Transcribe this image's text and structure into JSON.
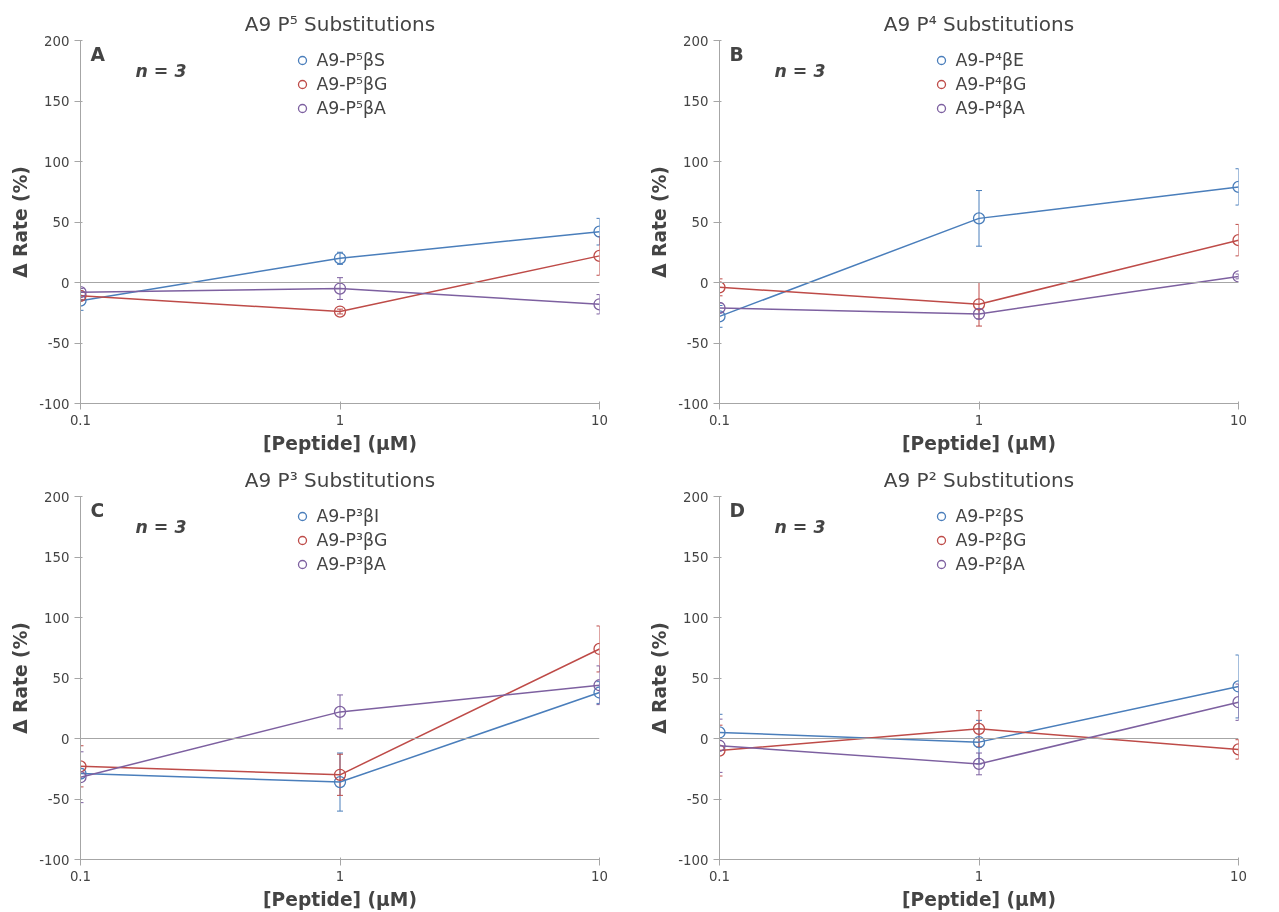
{
  "chart_data": [
    {
      "type": "line",
      "title": "A9 P⁵ Substitutions",
      "xlabel": "[Peptide] (μM)",
      "ylabel": "Δ Rate (%)",
      "annotations": [
        "A",
        "n = 3"
      ],
      "x": [
        0.1,
        1,
        10
      ],
      "log": "x",
      "xlim": [
        0.1,
        10
      ],
      "xticks": [
        0.1,
        1,
        10
      ],
      "ylim": [
        -100,
        200
      ],
      "yticks": [
        -100,
        -50,
        0,
        50,
        100,
        150,
        200
      ],
      "grid": false,
      "legend": "top",
      "marker": "circle",
      "line_style": "solid",
      "ref_lines": [
        {
          "axis": "y",
          "value": 0,
          "color": "#a6a6a6"
        }
      ],
      "series": [
        {
          "name": "A9-P⁵βS",
          "color": "#4a7ebb",
          "values": [
            -15,
            20,
            42
          ],
          "errors": [
            8,
            5,
            11
          ]
        },
        {
          "name": "A9-P⁵βG",
          "color": "#be4b48",
          "values": [
            -11,
            -24,
            22
          ],
          "errors": [
            3,
            2,
            16
          ]
        },
        {
          "name": "A9-P⁵βA",
          "color": "#7d60a0",
          "values": [
            -8,
            -5,
            -18
          ],
          "errors": [
            3,
            9,
            8
          ]
        }
      ]
    },
    {
      "type": "line",
      "title": "A9 P⁴ Substitutions",
      "xlabel": "[Peptide] (μM)",
      "ylabel": "Δ Rate (%)",
      "annotations": [
        "B",
        "n = 3"
      ],
      "x": [
        0.1,
        1,
        10
      ],
      "log": "x",
      "xlim": [
        0.1,
        10
      ],
      "xticks": [
        0.1,
        1,
        10
      ],
      "ylim": [
        -100,
        200
      ],
      "yticks": [
        -100,
        -50,
        0,
        50,
        100,
        150,
        200
      ],
      "grid": false,
      "legend": "top",
      "marker": "circle",
      "line_style": "solid",
      "ref_lines": [
        {
          "axis": "y",
          "value": 0,
          "color": "#a6a6a6"
        }
      ],
      "series": [
        {
          "name": "A9-P⁴βE",
          "color": "#4a7ebb",
          "values": [
            -28,
            53,
            79
          ],
          "errors": [
            9,
            23,
            15
          ]
        },
        {
          "name": "A9-P⁴βG",
          "color": "#be4b48",
          "values": [
            -4,
            -18,
            35
          ],
          "errors": [
            7,
            18,
            13
          ]
        },
        {
          "name": "A9-P⁴βA",
          "color": "#7d60a0",
          "values": [
            -21,
            -26,
            5
          ],
          "errors": [
            4,
            4,
            2
          ]
        }
      ]
    },
    {
      "type": "line",
      "title": "A9 P³ Substitutions",
      "xlabel": "[Peptide] (μM)",
      "ylabel": "Δ Rate (%)",
      "annotations": [
        "C",
        "n = 3"
      ],
      "x": [
        0.1,
        1,
        10
      ],
      "log": "x",
      "xlim": [
        0.1,
        10
      ],
      "xticks": [
        0.1,
        1,
        10
      ],
      "ylim": [
        -100,
        200
      ],
      "yticks": [
        -100,
        -50,
        0,
        50,
        100,
        150,
        200
      ],
      "grid": false,
      "legend": "top",
      "marker": "circle",
      "line_style": "solid",
      "ref_lines": [
        {
          "axis": "y",
          "value": 0,
          "color": "#a6a6a6"
        }
      ],
      "series": [
        {
          "name": "A9-P³βI",
          "color": "#4a7ebb",
          "values": [
            -29,
            -36,
            38
          ],
          "errors": [
            4,
            24,
            9
          ]
        },
        {
          "name": "A9-P³βG",
          "color": "#be4b48",
          "values": [
            -23,
            -30,
            74
          ],
          "errors": [
            17,
            17,
            19
          ]
        },
        {
          "name": "A9-P³βA",
          "color": "#7d60a0",
          "values": [
            -32,
            22,
            44
          ],
          "errors": [
            21,
            14,
            16
          ]
        }
      ]
    },
    {
      "type": "line",
      "title": "A9 P² Substitutions",
      "xlabel": "[Peptide] (μM)",
      "ylabel": "Δ Rate (%)",
      "annotations": [
        "D",
        "n = 3"
      ],
      "x": [
        0.1,
        1,
        10
      ],
      "log": "x",
      "xlim": [
        0.1,
        10
      ],
      "xticks": [
        0.1,
        1,
        10
      ],
      "ylim": [
        -100,
        200
      ],
      "yticks": [
        -100,
        -50,
        0,
        50,
        100,
        150,
        200
      ],
      "grid": false,
      "legend": "top",
      "marker": "circle",
      "line_style": "solid",
      "ref_lines": [
        {
          "axis": "y",
          "value": 0,
          "color": "#a6a6a6"
        }
      ],
      "series": [
        {
          "name": "A9-P²βS",
          "color": "#4a7ebb",
          "values": [
            5,
            -3,
            43
          ],
          "errors": [
            15,
            18,
            26
          ]
        },
        {
          "name": "A9-P²βG",
          "color": "#be4b48",
          "values": [
            -10,
            8,
            -9
          ],
          "errors": [
            21,
            15,
            8
          ]
        },
        {
          "name": "A9-P²βA",
          "color": "#7d60a0",
          "values": [
            -6,
            -21,
            30
          ],
          "errors": [
            22,
            9,
            15
          ]
        }
      ]
    }
  ]
}
